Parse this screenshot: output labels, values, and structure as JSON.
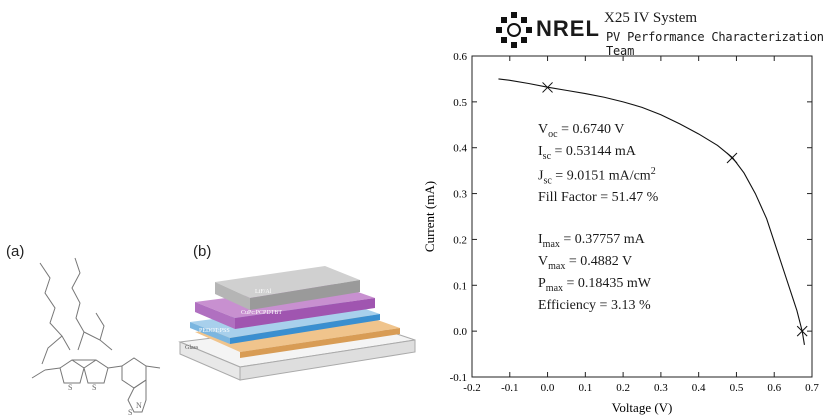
{
  "panels": {
    "a": "(a)",
    "b": "(b)"
  },
  "device_layers": [
    "LiF/Al",
    "CuPc:PCPDTBT",
    "PEDOT:PSS",
    "Glass"
  ],
  "nrel": {
    "logo_text": "NREL",
    "system_title": "X25 IV System",
    "team": "PV Performance Characterization Team"
  },
  "params": [
    {
      "sym": "V",
      "sub": "oc",
      "value": " = 0.6740 V"
    },
    {
      "sym": "I",
      "sub": "sc",
      "value": " = 0.53144 mA"
    },
    {
      "sym": "J",
      "sub": "sc",
      "value": " = 9.0151 mA/cm",
      "sup": "2"
    },
    {
      "sym": "Fill Factor",
      "sub": "",
      "value": " = 51.47 %"
    },
    {
      "sym": "I",
      "sub": "max",
      "value": " = 0.37757 mA"
    },
    {
      "sym": "V",
      "sub": "max",
      "value": " = 0.4882 V"
    },
    {
      "sym": "P",
      "sub": "max",
      "value": " = 0.18435 mW"
    },
    {
      "sym": "Efficiency",
      "sub": "",
      "value": " = 3.13 %"
    }
  ],
  "chart_data": {
    "type": "line",
    "xlabel": "Voltage (V)",
    "ylabel": "Current (mA)",
    "xlim": [
      -0.2,
      0.7
    ],
    "ylim": [
      -0.1,
      0.6
    ],
    "xticks": [
      "-0.2",
      "-0.1",
      "0.0",
      "0.1",
      "0.2",
      "0.3",
      "0.4",
      "0.5",
      "0.6",
      "0.7"
    ],
    "yticks": [
      "-0.1",
      "0.0",
      "0.1",
      "0.2",
      "0.3",
      "0.4",
      "0.5",
      "0.6"
    ],
    "grid": false,
    "series": [
      {
        "x": [
          -0.13,
          -0.1,
          -0.05,
          0.0,
          0.05,
          0.1,
          0.15,
          0.2,
          0.25,
          0.3,
          0.35,
          0.4,
          0.45,
          0.49,
          0.52,
          0.55,
          0.58,
          0.61,
          0.63,
          0.65,
          0.66,
          0.674,
          0.68
        ],
        "y": [
          0.55,
          0.547,
          0.54,
          0.532,
          0.525,
          0.518,
          0.51,
          0.5,
          0.488,
          0.472,
          0.452,
          0.43,
          0.405,
          0.378,
          0.345,
          0.3,
          0.245,
          0.17,
          0.12,
          0.07,
          0.045,
          0.0,
          -0.03
        ]
      }
    ],
    "markers": [
      {
        "x": 0.0,
        "y": 0.5314
      },
      {
        "x": 0.4882,
        "y": 0.3776
      },
      {
        "x": 0.674,
        "y": 0.0
      }
    ]
  }
}
